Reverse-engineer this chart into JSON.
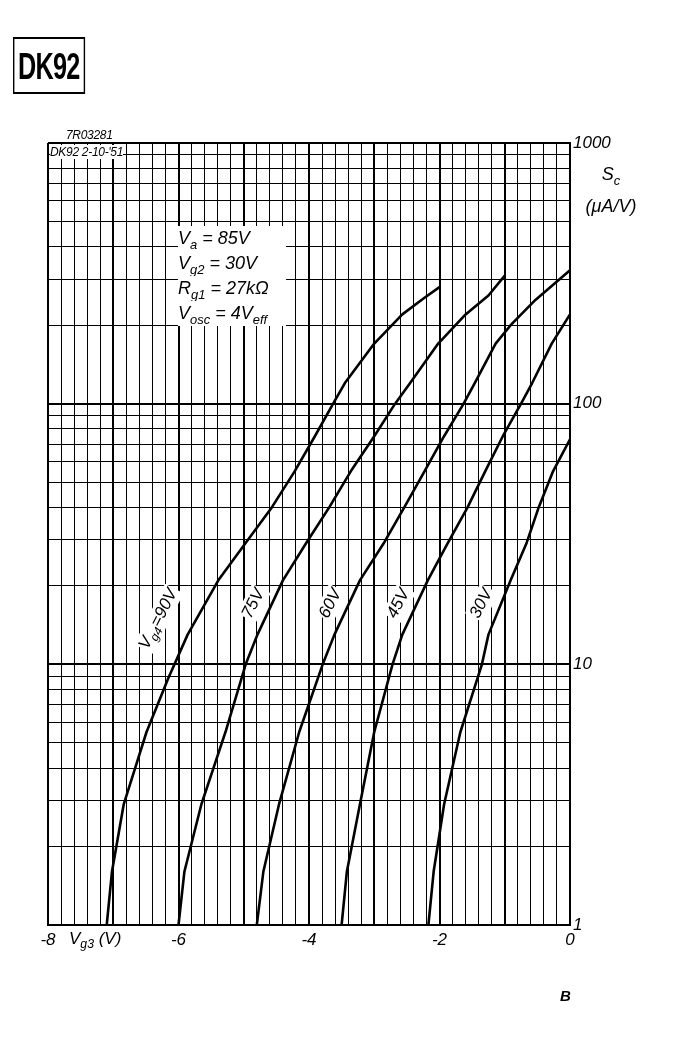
{
  "chart_data": {
    "type": "line",
    "title": "DK92",
    "xlabel": "V$_{g3}$ (V)",
    "ylabel": "S$_{c}$ (μA/V)",
    "annotations": [
      "7R03281",
      "DK92 2-10-'51",
      "V$_{a}$ = 85V",
      "V$_{g2}$ = 30V",
      "R$_{g1}$ = 27kΩ",
      "V$_{osc}$ = 4V$_{eff}$",
      "B"
    ],
    "series": [
      {
        "name": "V$_{g4}$=90V",
        "color": "#000000",
        "x": [
          -7.1,
          -7.02,
          -6.84,
          -6.49,
          -6.16,
          -5.86,
          -5.39,
          -4.98,
          -4.57,
          -4.22,
          -3.91,
          -3.63,
          -3.45,
          -3.0,
          -2.57,
          -2.23,
          -2.0
        ],
        "values": [
          1,
          1.6,
          2.9,
          5.5,
          8.8,
          13,
          21,
          29,
          40,
          55,
          75,
          100,
          120,
          170,
          220,
          255,
          280
        ]
      },
      {
        "name": "75V",
        "color": "#000000",
        "x": [
          -6.0,
          -5.91,
          -5.65,
          -5.28,
          -4.97,
          -4.79,
          -4.4,
          -4.05,
          -3.69,
          -3.36,
          -3.0,
          -2.68,
          -2.45,
          -2.02,
          -1.6,
          -1.25,
          -1.0
        ],
        "values": [
          1,
          1.6,
          2.9,
          5.5,
          10,
          13,
          21,
          29,
          40,
          55,
          75,
          100,
          120,
          170,
          220,
          260,
          310
        ]
      },
      {
        "name": "60V",
        "color": "#000000",
        "x": [
          -4.8,
          -4.7,
          -4.46,
          -4.15,
          -3.79,
          -3.61,
          -3.22,
          -2.86,
          -2.54,
          -2.23,
          -1.93,
          -1.63,
          -1.46,
          -1.14,
          -0.91,
          -0.53,
          0
        ],
        "values": [
          1,
          1.6,
          2.9,
          5.5,
          10,
          13,
          21,
          29,
          40,
          55,
          75,
          100,
          120,
          170,
          200,
          250,
          325
        ]
      },
      {
        "name": "45V",
        "color": "#000000",
        "x": [
          -3.5,
          -3.42,
          -3.22,
          -3.0,
          -2.72,
          -2.57,
          -2.18,
          -1.88,
          -1.57,
          -1.3,
          -1.03,
          -0.75,
          -0.58,
          -0.28,
          0
        ],
        "values": [
          1,
          1.6,
          2.9,
          5.5,
          10,
          13,
          21,
          29,
          40,
          55,
          75,
          100,
          120,
          170,
          220
        ]
      },
      {
        "name": "30V",
        "color": "#000000",
        "x": [
          -2.17,
          -2.09,
          -1.93,
          -1.68,
          -1.35,
          -1.25,
          -0.91,
          -0.67,
          -0.48,
          -0.26,
          0
        ],
        "values": [
          1,
          1.6,
          2.9,
          5.5,
          10,
          13,
          21,
          29,
          40,
          55,
          73
        ]
      }
    ],
    "xlim": [
      -8,
      0
    ],
    "xticks": [
      -8,
      {
        "value": -7.8,
        "label": null
      },
      {
        "value": -7.6,
        "label": null
      },
      {
        "value": -7.4,
        "label": null
      },
      {
        "value": -7.2,
        "label": null
      },
      {
        "value": -7,
        "label": null
      },
      {
        "value": -6.8,
        "label": null
      },
      {
        "value": -6.6,
        "label": null
      },
      {
        "value": -6.4,
        "label": null
      },
      {
        "value": -6.2,
        "label": null
      },
      -6,
      {
        "value": -5.8,
        "label": null
      },
      {
        "value": -5.6,
        "label": null
      },
      {
        "value": -5.4,
        "label": null
      },
      {
        "value": -5.2,
        "label": null
      },
      {
        "value": -5,
        "label": null
      },
      {
        "value": -4.8,
        "label": null
      },
      {
        "value": -4.6,
        "label": null
      },
      {
        "value": -4.4,
        "label": null
      },
      {
        "value": -4.2,
        "label": null
      },
      -4,
      {
        "value": -3.8,
        "label": null
      },
      {
        "value": -3.6,
        "label": null
      },
      {
        "value": -3.4,
        "label": null
      },
      {
        "value": -3.2,
        "label": null
      },
      {
        "value": -3,
        "label": null
      },
      {
        "value": -2.8,
        "label": null
      },
      {
        "value": -2.6,
        "label": null
      },
      {
        "value": -2.4,
        "label": null
      },
      {
        "value": -2.2,
        "label": null
      },
      -2,
      {
        "value": -1.8,
        "label": null
      },
      {
        "value": -1.6,
        "label": null
      },
      {
        "value": -1.4,
        "label": null
      },
      {
        "value": -1.2,
        "label": null
      },
      {
        "value": -1,
        "label": null
      },
      {
        "value": -0.8,
        "label": null
      },
      {
        "value": -0.6,
        "label": null
      },
      {
        "value": -0.4,
        "label": null
      },
      {
        "value": -0.2,
        "label": null
      },
      0
    ],
    "ylim": [
      1,
      1000
    ],
    "yticks": [
      1,
      {
        "value": 2,
        "label": null
      },
      {
        "value": 3,
        "label": null
      },
      {
        "value": 4,
        "label": null
      },
      {
        "value": 5,
        "label": null
      },
      {
        "value": 6,
        "label": null
      },
      {
        "value": 7,
        "label": null
      },
      {
        "value": 8,
        "label": null
      },
      {
        "value": 9,
        "label": null
      },
      10,
      {
        "value": 20,
        "label": null
      },
      {
        "value": 30,
        "label": null
      },
      {
        "value": 40,
        "label": null
      },
      {
        "value": 50,
        "label": null
      },
      {
        "value": 60,
        "label": null
      },
      {
        "value": 70,
        "label": null
      },
      {
        "value": 80,
        "label": null
      },
      {
        "value": 90,
        "label": null
      },
      100,
      {
        "value": 200,
        "label": null
      },
      {
        "value": 300,
        "label": null
      },
      {
        "value": 400,
        "label": null
      },
      {
        "value": 500,
        "label": null
      },
      {
        "value": 600,
        "label": null
      },
      {
        "value": 700,
        "label": null
      },
      {
        "value": 800,
        "label": null
      },
      {
        "value": 900,
        "label": null
      },
      1000
    ],
    "log": "y",
    "grid": true,
    "marker": "none"
  }
}
